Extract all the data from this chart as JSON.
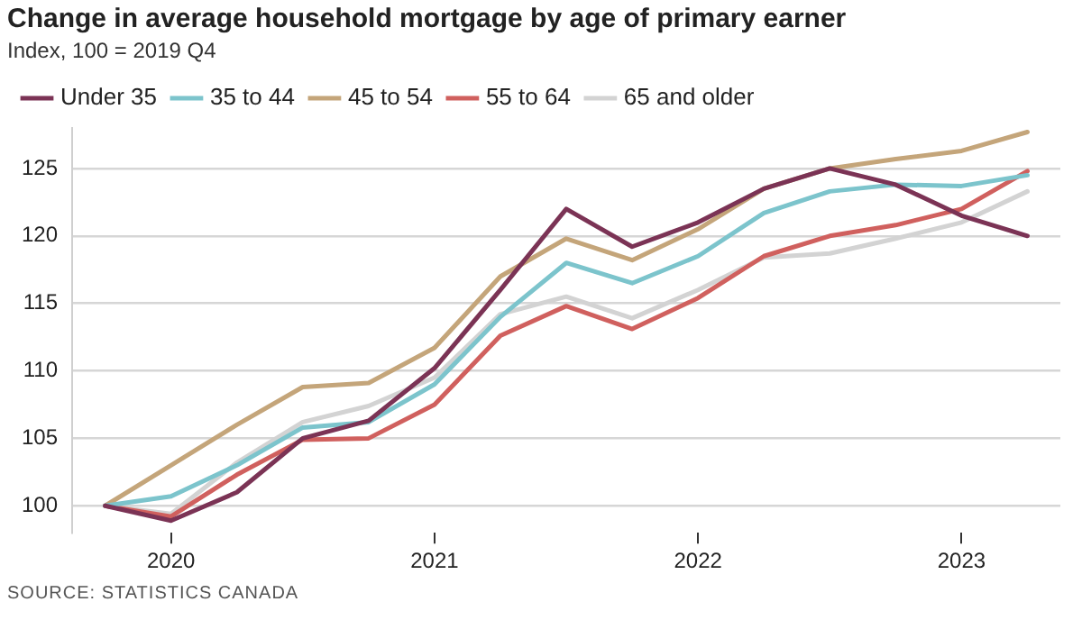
{
  "chart_data": {
    "type": "line",
    "title": "Change in average household mortgage by age of primary earner",
    "subtitle": "Index, 100 = 2019 Q4",
    "categories": [
      null,
      "2020",
      null,
      null,
      null,
      "2021",
      null,
      null,
      null,
      "2022",
      null,
      null,
      null,
      "2023",
      null
    ],
    "series": [
      {
        "name": "Under 35",
        "color": "#7b3355",
        "values": [
          100,
          98.9,
          101,
          105,
          106.3,
          110.2,
          116,
          122,
          119.2,
          121,
          123.5,
          125,
          123.8,
          121.5,
          120
        ]
      },
      {
        "name": "35 to 44",
        "color": "#7cc4cc",
        "values": [
          100,
          100.7,
          103,
          105.8,
          106.2,
          109,
          114,
          118,
          116.5,
          118.5,
          121.7,
          123.3,
          123.8,
          123.7,
          124.5
        ]
      },
      {
        "name": "45 to 54",
        "color": "#c4a57a",
        "values": [
          100,
          103,
          106,
          108.8,
          109.1,
          111.7,
          117,
          119.8,
          118.2,
          120.5,
          123.5,
          125,
          125.7,
          126.3,
          127.7
        ]
      },
      {
        "name": "55 to 64",
        "color": "#d0605e",
        "values": [
          100,
          99.2,
          102.3,
          104.9,
          105,
          107.5,
          112.6,
          114.8,
          113.1,
          115.4,
          118.5,
          120,
          120.8,
          122,
          124.8
        ]
      },
      {
        "name": "65 and older",
        "color": "#d3d3d3",
        "values": [
          100,
          99.4,
          103.2,
          106.2,
          107.4,
          109.5,
          114.2,
          115.5,
          113.9,
          116,
          118.4,
          118.7,
          119.8,
          121,
          123.3
        ]
      }
    ],
    "ylim": [
      98,
      128
    ],
    "yticks": [
      100,
      105,
      110,
      115,
      120,
      125
    ],
    "grid": "y",
    "legend": "top left",
    "marker": "none",
    "line_style": "solid",
    "annotations": [
      "SOURCE: STATISTICS CANADA"
    ]
  }
}
